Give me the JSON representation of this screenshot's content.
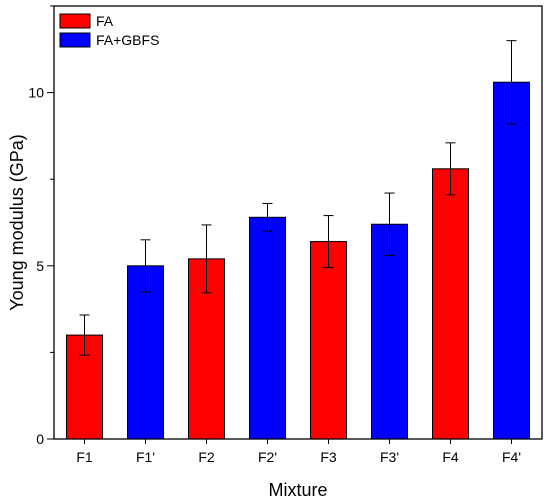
{
  "chart_data": {
    "type": "bar",
    "title": "",
    "xlabel": "Mixture",
    "ylabel": "Young modulus (GPa)",
    "categories": [
      "F1",
      "F1'",
      "F2",
      "F2'",
      "F3",
      "F3'",
      "F4",
      "F4'"
    ],
    "values": [
      3.0,
      5.0,
      5.2,
      6.4,
      5.7,
      6.2,
      7.8,
      10.3
    ],
    "errors": [
      0.58,
      0.75,
      0.98,
      0.4,
      0.75,
      0.9,
      0.75,
      1.2
    ],
    "bar_series": [
      "FA",
      "FA+GBFS",
      "FA",
      "FA+GBFS",
      "FA",
      "FA+GBFS",
      "FA",
      "FA+GBFS"
    ],
    "series": [
      {
        "name": "FA",
        "color": "#ff0000"
      },
      {
        "name": "FA+GBFS",
        "color": "#0000ff"
      }
    ],
    "ylim": [
      0,
      12.5
    ],
    "yticks": [
      0,
      5,
      10
    ],
    "y_minor_step": 2.5,
    "grid": false,
    "legend_position": "top-left"
  }
}
